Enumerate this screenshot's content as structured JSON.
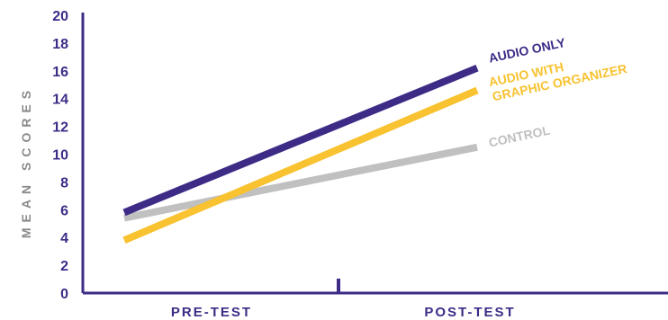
{
  "chart_data": {
    "type": "line",
    "categories": [
      "PRE-TEST",
      "POST-TEST"
    ],
    "ylabel": "MEAN SCORES",
    "ylim": [
      0,
      20
    ],
    "yticks": [
      "0",
      "2",
      "4",
      "6",
      "8",
      "10",
      "12",
      "14",
      "16",
      "18",
      "20"
    ],
    "grid": false,
    "series": [
      {
        "name": "AUDIO ONLY",
        "values": [
          5.8,
          16.2
        ],
        "color": "#3d2b86"
      },
      {
        "name": "AUDIO WITH GRAPHIC ORGANIZER",
        "label_lines": [
          "AUDIO WITH",
          "GRAPHIC ORGANIZER"
        ],
        "values": [
          3.8,
          14.6
        ],
        "color": "#f8c230"
      },
      {
        "name": "CONTROL",
        "values": [
          5.4,
          10.5
        ],
        "color": "#c0c0c0"
      }
    ]
  },
  "colors": {
    "axis": "#3d2b86",
    "axis_label": "#8a8a8a"
  }
}
